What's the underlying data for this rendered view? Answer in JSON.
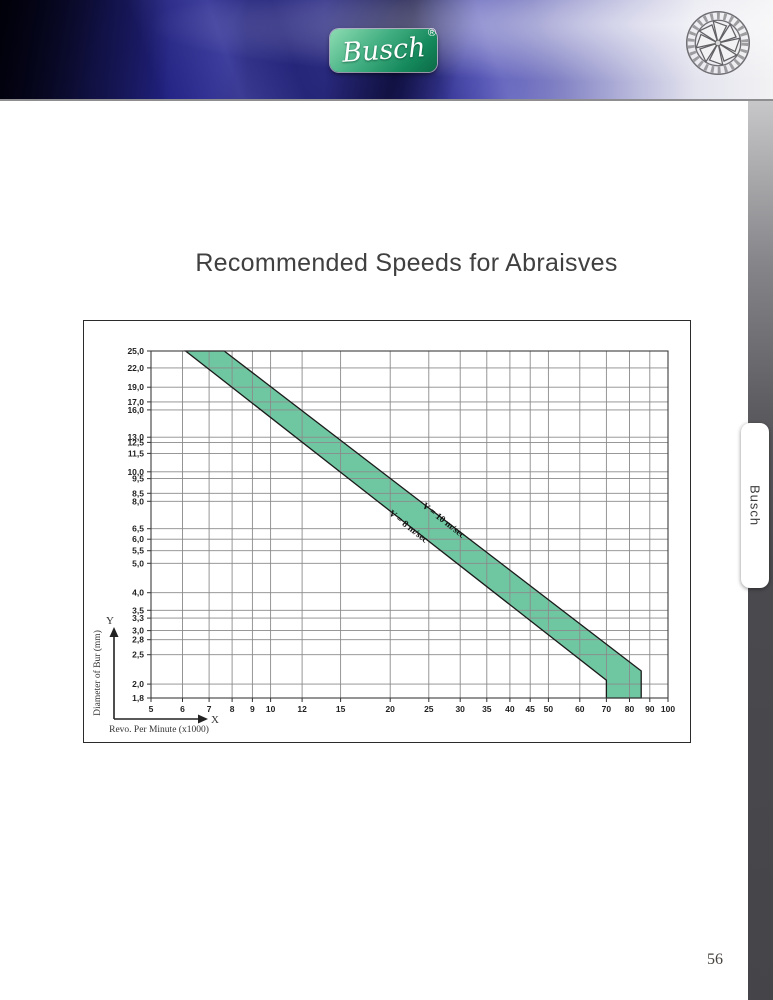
{
  "page": {
    "number": "56",
    "side_tab": "Busch"
  },
  "header": {
    "brand": "Busch",
    "registered_mark": "®"
  },
  "title": "Recommended Speeds for Abraisves",
  "chart_data": {
    "type": "area",
    "title": "Recommended Speeds for Abraisves",
    "grid": true,
    "x_axis": {
      "label": "Revo. Per Minute (x1000)",
      "axis_letter": "X",
      "scale": "log",
      "range": [
        5,
        100
      ],
      "ticks": [
        5,
        6,
        7,
        8,
        9,
        10,
        12,
        15,
        20,
        25,
        30,
        35,
        40,
        45,
        50,
        60,
        70,
        80,
        90,
        100
      ],
      "tick_labels": [
        "5",
        "6",
        "7",
        "8",
        "9",
        "10",
        "12",
        "15",
        "20",
        "25",
        "30",
        "35",
        "40",
        "45",
        "50",
        "60",
        "70",
        "80",
        "90",
        "100"
      ]
    },
    "y_axis": {
      "label": "Diameter of Bur (mm)",
      "axis_letter": "Y",
      "scale": "log",
      "range": [
        1.8,
        25
      ],
      "ticks": [
        25,
        22,
        19,
        17,
        16,
        13,
        12.5,
        11.5,
        10,
        9.5,
        8.5,
        8,
        6.5,
        6,
        5.5,
        5,
        4,
        3.5,
        3.3,
        3,
        2.8,
        2.5,
        2,
        1.8
      ],
      "tick_labels": [
        "25,0",
        "22,0",
        "19,0",
        "17,0",
        "16,0",
        "13,0",
        "12,5",
        "11,5",
        "10,0",
        "9,5",
        "8,5",
        "8,0",
        "6,5",
        "6,0",
        "5,5",
        "5,0",
        "4,0",
        "3,5",
        "3,3",
        "3,0",
        "2,8",
        "2,5",
        "2,0",
        "1,8"
      ]
    },
    "band": {
      "fill": "#6fc7a2",
      "edge": "#1b1b1b",
      "polygon": [
        [
          6.11,
          25
        ],
        [
          7.64,
          25
        ],
        [
          85.6,
          2.21
        ],
        [
          85.6,
          1.8
        ],
        [
          70,
          1.8
        ],
        [
          70,
          2.06
        ]
      ],
      "labels": [
        {
          "text": "V = 8 m/sec",
          "x": 22,
          "y": 6.5,
          "angle": 38
        },
        {
          "text": "V = 10 m/sec",
          "x": 27,
          "y": 6.8,
          "angle": 38
        }
      ]
    },
    "colors": {
      "gridline": "#8a8a8a",
      "plot_border": "#3c3c3c",
      "tick_text": "#1f1f1f"
    }
  }
}
